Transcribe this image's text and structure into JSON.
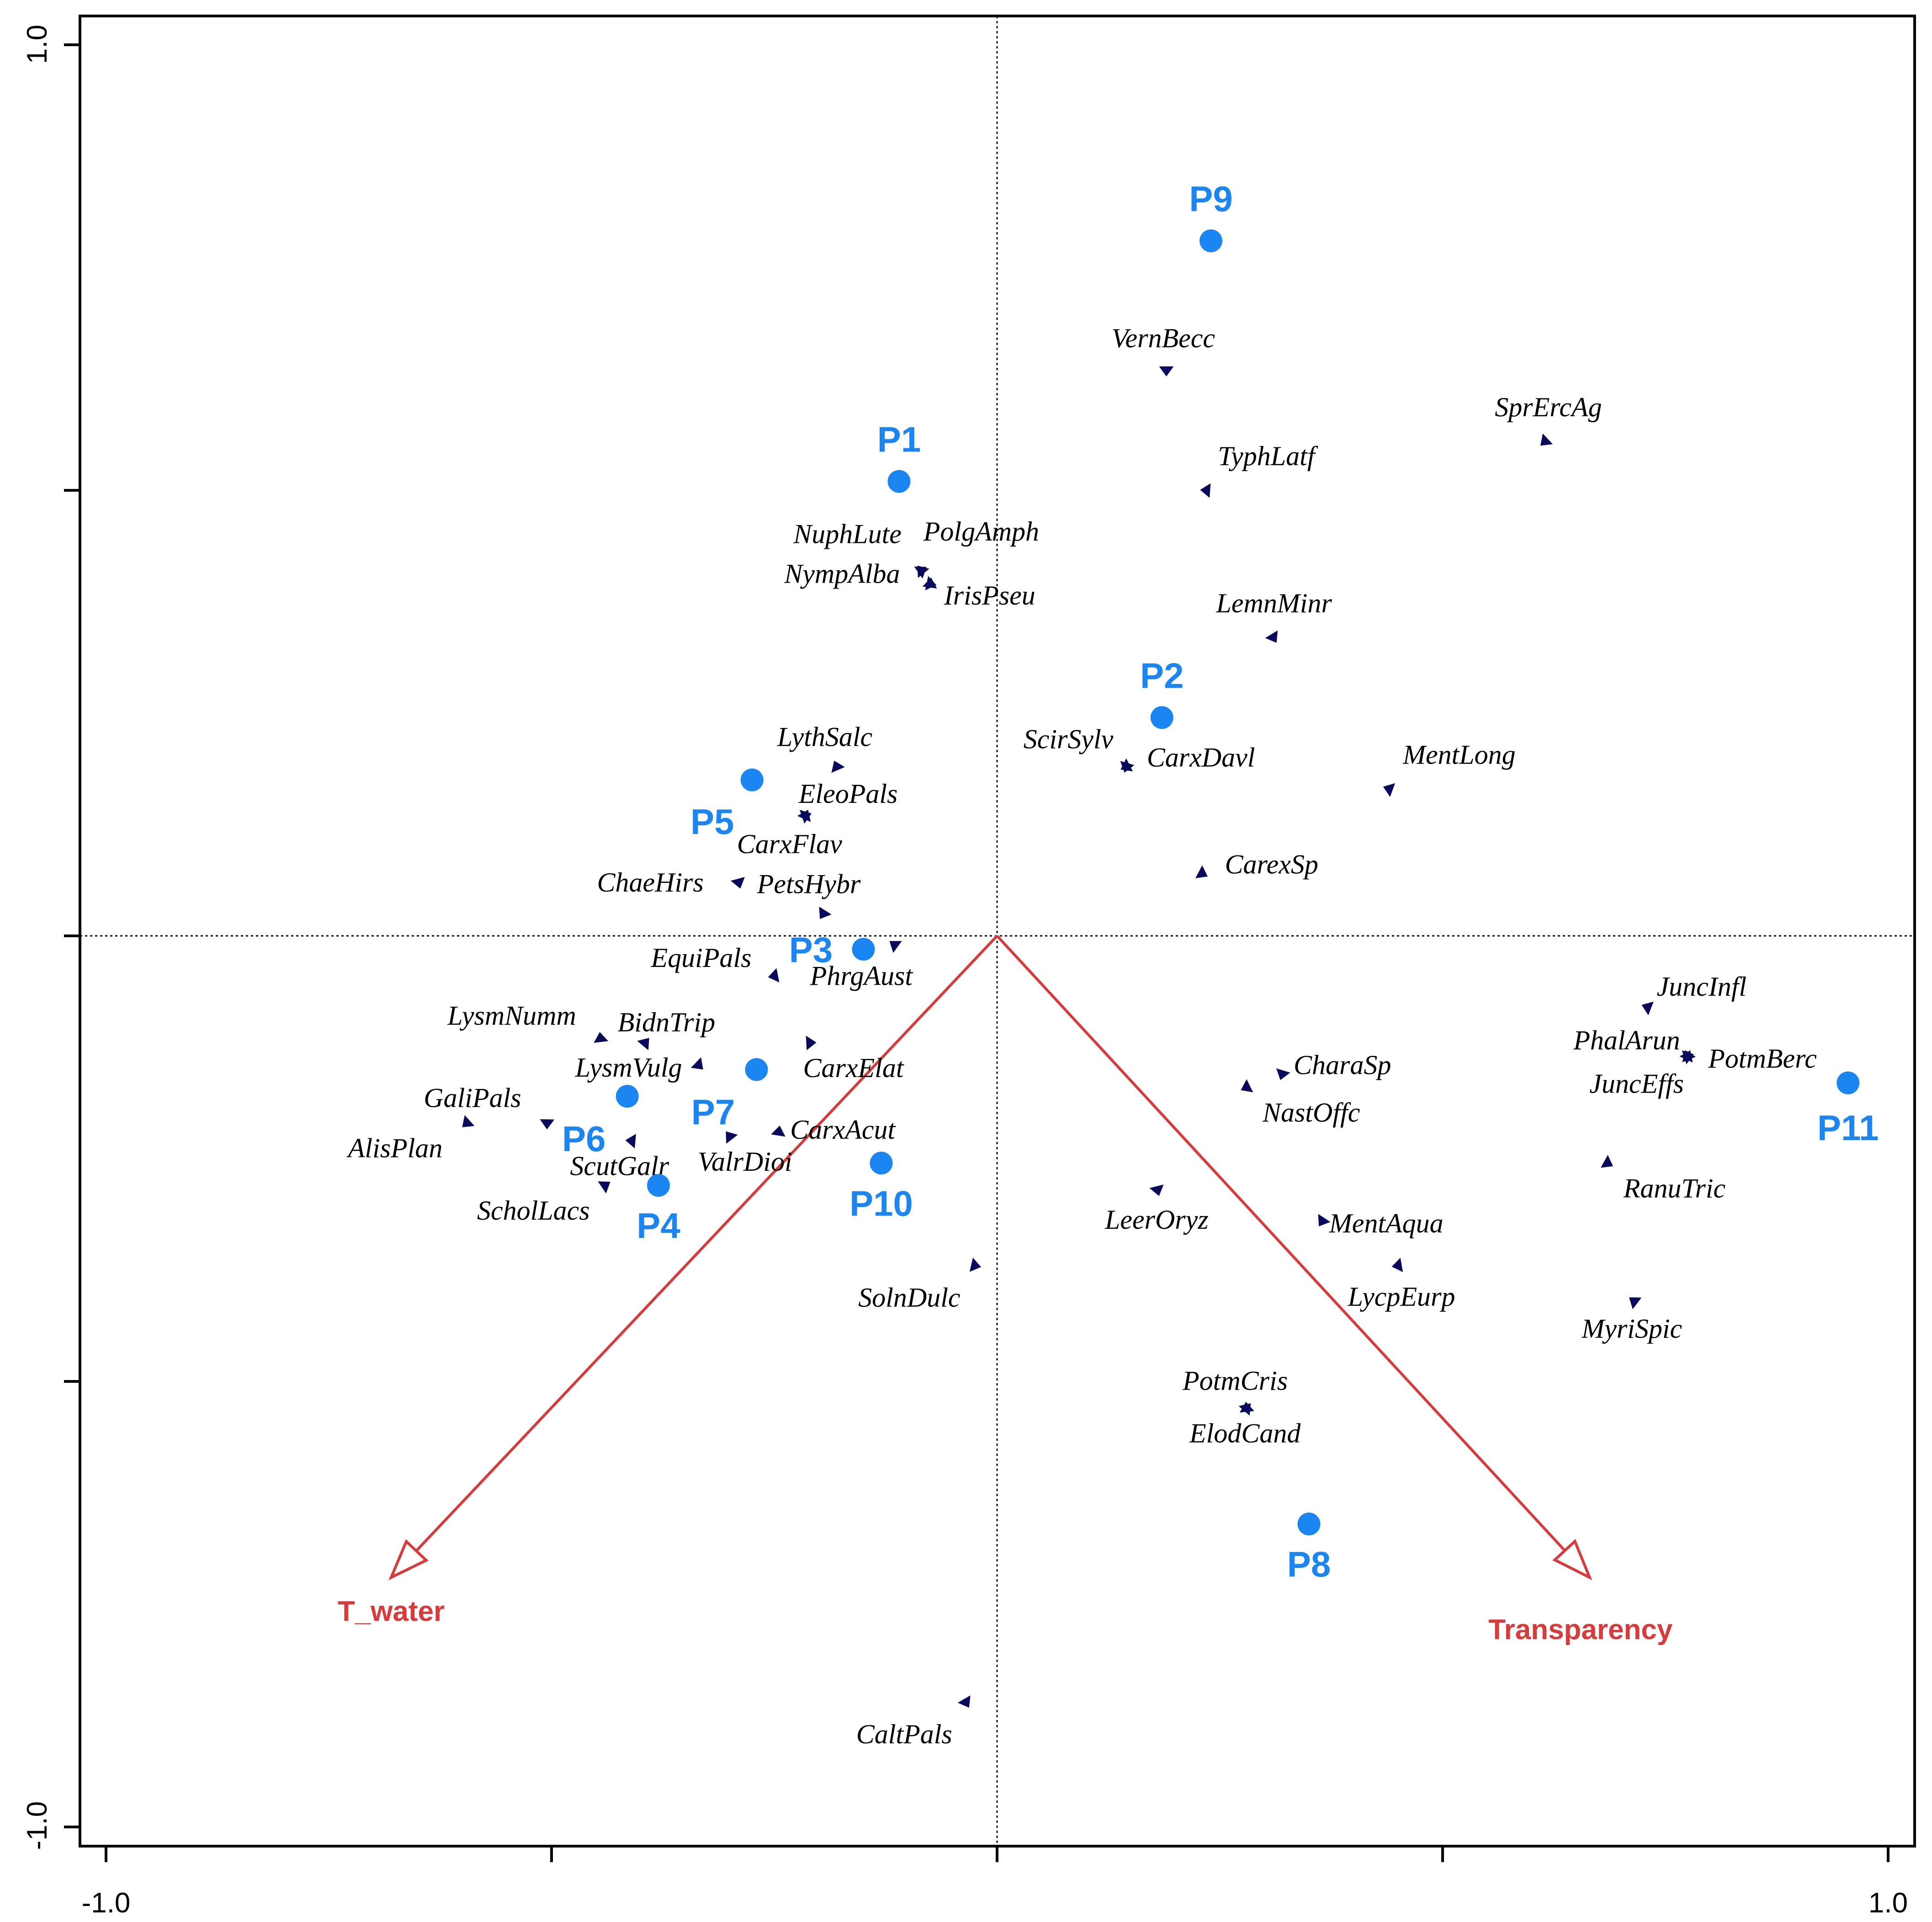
{
  "chart_data": {
    "type": "scatter",
    "title": "",
    "xlabel": "",
    "ylabel": "",
    "xlim": [
      -1.0,
      1.0
    ],
    "ylim": [
      -1.0,
      1.0
    ],
    "x_ticks": [
      -1.0,
      -0.5,
      0.0,
      0.5,
      1.0
    ],
    "y_ticks": [
      -1.0,
      -0.5,
      0.0,
      0.5,
      1.0
    ],
    "x_tick_labels": [
      "-1.0",
      "1.0"
    ],
    "y_tick_labels": [
      "1.0",
      "-1.0"
    ],
    "grid": false,
    "colors": {
      "sites": "#1b85f2",
      "species": "#0a0a5c",
      "env": "#d93a3a",
      "axis": "#000000"
    },
    "sites": [
      {
        "name": "P9",
        "x": 0.24,
        "y": 0.78
      },
      {
        "name": "P1",
        "x": -0.11,
        "y": 0.51
      },
      {
        "name": "P2",
        "x": 0.185,
        "y": 0.245
      },
      {
        "name": "P5",
        "x": -0.275,
        "y": 0.175
      },
      {
        "name": "P3",
        "x": -0.15,
        "y": -0.015
      },
      {
        "name": "P7",
        "x": -0.27,
        "y": -0.15
      },
      {
        "name": "P6",
        "x": -0.415,
        "y": -0.18
      },
      {
        "name": "P4",
        "x": -0.38,
        "y": -0.28
      },
      {
        "name": "P10",
        "x": -0.13,
        "y": -0.255
      },
      {
        "name": "P11",
        "x": 0.955,
        "y": -0.165
      },
      {
        "name": "P8",
        "x": 0.35,
        "y": -0.66
      }
    ],
    "species": [
      {
        "name": "VernBecc",
        "x": 0.19,
        "y": 0.635
      },
      {
        "name": "SprErcAg",
        "x": 0.615,
        "y": 0.555
      },
      {
        "name": "TyphLatf",
        "x": 0.235,
        "y": 0.5
      },
      {
        "name": "NuphLute",
        "x": -0.085,
        "y": 0.41
      },
      {
        "name": "PolgAmph",
        "x": -0.075,
        "y": 0.395
      },
      {
        "name": "NympAlba",
        "x": -0.085,
        "y": 0.41
      },
      {
        "name": "IrisPseu",
        "x": -0.075,
        "y": 0.395
      },
      {
        "name": "LemnMinr",
        "x": 0.31,
        "y": 0.335
      },
      {
        "name": "ScirSylv",
        "x": 0.145,
        "y": 0.19
      },
      {
        "name": "CarxDavl",
        "x": 0.145,
        "y": 0.19
      },
      {
        "name": "MentLong",
        "x": 0.44,
        "y": 0.165
      },
      {
        "name": "LythSalc",
        "x": -0.18,
        "y": 0.19
      },
      {
        "name": "EleoPals",
        "x": -0.215,
        "y": 0.135
      },
      {
        "name": "CarxFlav",
        "x": -0.215,
        "y": 0.135
      },
      {
        "name": "CarexSp",
        "x": 0.23,
        "y": 0.07
      },
      {
        "name": "ChaeHirs",
        "x": -0.29,
        "y": 0.06
      },
      {
        "name": "PetsHybr",
        "x": -0.195,
        "y": 0.025
      },
      {
        "name": "EquiPals",
        "x": -0.25,
        "y": -0.045
      },
      {
        "name": "PhrgAust",
        "x": -0.115,
        "y": -0.01
      },
      {
        "name": "LysmNumm",
        "x": -0.445,
        "y": -0.115
      },
      {
        "name": "BidnTrip",
        "x": -0.395,
        "y": -0.12
      },
      {
        "name": "CarxElat",
        "x": -0.21,
        "y": -0.12
      },
      {
        "name": "LysmVulg",
        "x": -0.335,
        "y": -0.145
      },
      {
        "name": "GaliPals",
        "x": -0.505,
        "y": -0.21
      },
      {
        "name": "AlisPlan",
        "x": -0.595,
        "y": -0.21
      },
      {
        "name": "ScutGalr",
        "x": -0.41,
        "y": -0.23
      },
      {
        "name": "ValrDioi",
        "x": -0.3,
        "y": -0.225
      },
      {
        "name": "CarxAcut",
        "x": -0.245,
        "y": -0.22
      },
      {
        "name": "ScholLacs",
        "x": -0.44,
        "y": -0.28
      },
      {
        "name": "SolnDulc",
        "x": -0.025,
        "y": -0.37
      },
      {
        "name": "CaltPals",
        "x": -0.035,
        "y": -0.86
      },
      {
        "name": "CharaSp",
        "x": 0.32,
        "y": -0.155
      },
      {
        "name": "NastOffc",
        "x": 0.28,
        "y": -0.17
      },
      {
        "name": "JuncInfl",
        "x": 0.73,
        "y": -0.08
      },
      {
        "name": "PhalArun",
        "x": 0.775,
        "y": -0.135
      },
      {
        "name": "PotmBerc",
        "x": 0.775,
        "y": -0.135
      },
      {
        "name": "JuncEffs",
        "x": 0.775,
        "y": -0.135
      },
      {
        "name": "RanuTric",
        "x": 0.685,
        "y": -0.255
      },
      {
        "name": "LeerOryz",
        "x": 0.18,
        "y": -0.285
      },
      {
        "name": "MentAqua",
        "x": 0.365,
        "y": -0.32
      },
      {
        "name": "LycpEurp",
        "x": 0.45,
        "y": -0.37
      },
      {
        "name": "MyriSpic",
        "x": 0.715,
        "y": -0.41
      },
      {
        "name": "PotmCris",
        "x": 0.28,
        "y": -0.53
      },
      {
        "name": "ElodCand",
        "x": 0.28,
        "y": -0.53
      }
    ],
    "env_vectors": [
      {
        "name": "T_water",
        "x": -0.68,
        "y": -0.72
      },
      {
        "name": "Transparency",
        "x": 0.665,
        "y": -0.72
      }
    ]
  },
  "labels": {
    "site": {
      "P9": "P9",
      "P1": "P1",
      "P2": "P2",
      "P5": "P5",
      "P3": "P3",
      "P7": "P7",
      "P6": "P6",
      "P4": "P4",
      "P10": "P10",
      "P11": "P11",
      "P8": "P8"
    },
    "species_text": {
      "VernBecc": "VernBecc",
      "SprErcAg": "SprErcAg",
      "TyphLatf": "TyphLatf",
      "NuphLute": "NuphLute",
      "PolgAmph": "PolgAmph",
      "NympAlba": "NympAlba",
      "IrisPseu": "IrisPseu",
      "LemnMinr": "LemnMinr",
      "ScirSylv": "ScirSylv",
      "CarxDavl": "CarxDavl",
      "MentLong": "MentLong",
      "LythSalc": "LythSalc",
      "EleoPals": "EleoPals",
      "CarxFlav": "CarxFlav",
      "CarexSp": "CarexSp",
      "ChaeHirs": "ChaeHirs",
      "PetsHybr": "PetsHybr",
      "EquiPals": "EquiPals",
      "PhrgAust": "PhrgAust",
      "LysmNumm": "LysmNumm",
      "BidnTrip": "BidnTrip",
      "CarxElat": "CarxElat",
      "LysmVulg": "LysmVulg",
      "GaliPals": "GaliPals",
      "AlisPlan": "AlisPlan",
      "ScutGalr": "ScutGalr",
      "ValrDioi": "ValrDioi",
      "CarxAcut": "CarxAcut",
      "ScholLacs": "ScholLacs",
      "SolnDulc": "SolnDulc",
      "CaltPals": "CaltPals",
      "CharaSp": "CharaSp",
      "NastOffc": "NastOffc",
      "JuncInfl": "JuncInfl",
      "PhalArun": "PhalArun",
      "PotmBerc": "PotmBerc",
      "JuncEffs": "JuncEffs",
      "RanuTric": "RanuTric",
      "LeerOryz": "LeerOryz",
      "MentAqua": "MentAqua",
      "LycpEurp": "LycpEurp",
      "MyriSpic": "MyriSpic",
      "PotmCris": "PotmCris",
      "ElodCand": "ElodCand"
    },
    "env": {
      "T_water": "T_water",
      "Transparency": "Transparency"
    },
    "ticks": {
      "x_min": "-1.0",
      "x_max": "1.0",
      "y_max": "1.0",
      "y_min": "-1.0"
    }
  }
}
